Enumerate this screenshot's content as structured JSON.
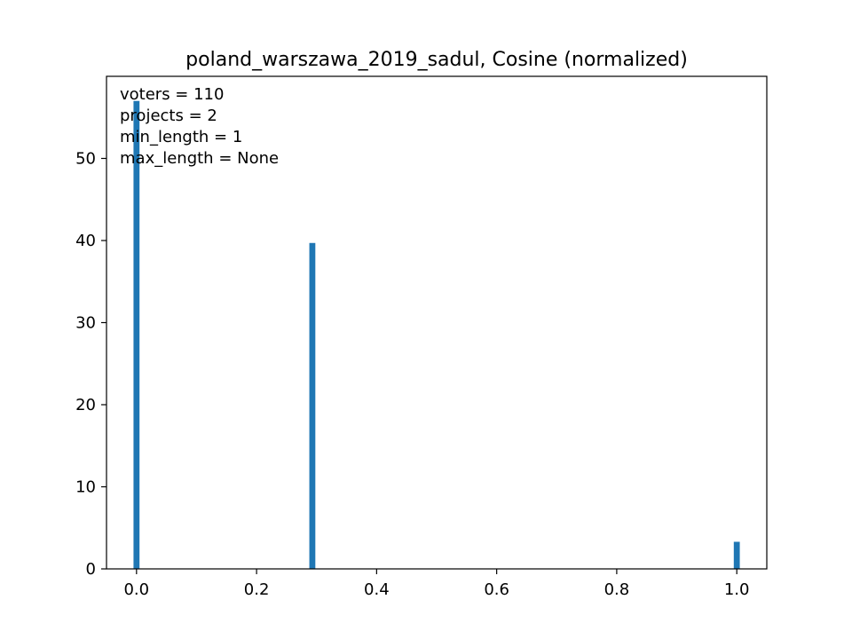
{
  "chart_data": {
    "type": "bar",
    "title": "poland_warszawa_2019_sadul, Cosine (normalized)",
    "xlabel": "",
    "ylabel": "",
    "xlim": [
      -0.05,
      1.05
    ],
    "ylim": [
      0,
      60
    ],
    "x_ticks": [
      0.0,
      0.2,
      0.4,
      0.6,
      0.8,
      1.0
    ],
    "x_tick_labels": [
      "0.0",
      "0.2",
      "0.4",
      "0.6",
      "0.8",
      "1.0"
    ],
    "y_ticks": [
      0,
      10,
      20,
      30,
      40,
      50
    ],
    "y_tick_labels": [
      "0",
      "10",
      "20",
      "30",
      "40",
      "50"
    ],
    "bar_width": 0.01,
    "bar_color": "#1f77b4",
    "grid": false,
    "bars": [
      {
        "x": 0.0,
        "value": 57
      },
      {
        "x": 0.2929,
        "value": 39.7
      },
      {
        "x": 1.0,
        "value": 3.3
      }
    ],
    "annotations": [
      "voters = 110",
      "projects = 2",
      "min_length = 1",
      "max_length = None"
    ]
  }
}
